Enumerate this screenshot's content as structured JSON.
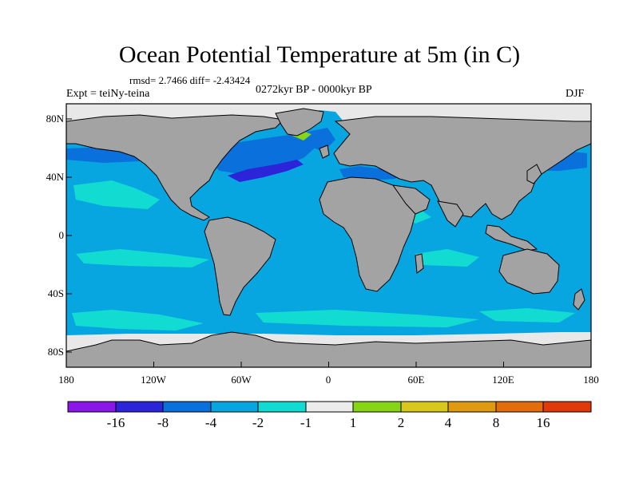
{
  "title": "Ocean Potential Temperature at 5m (in C)",
  "stats": "rmsd= 2.7466 diff= -2.43424",
  "experiment": "Expt = teiNy-teina",
  "period": "0272kyr BP - 0000kyr BP",
  "season": "DJF",
  "axes": {
    "x_ticks": [
      "180",
      "120W",
      "60W",
      "0",
      "60E",
      "120E",
      "180"
    ],
    "y_ticks": [
      "80N",
      "40N",
      "0",
      "40S",
      "80S"
    ]
  },
  "colorbar": {
    "labels": [
      "-16",
      "-8",
      "-4",
      "-2",
      "-1",
      "1",
      "2",
      "4",
      "8",
      "16"
    ],
    "colors": [
      "#8a17e8",
      "#2b24d9",
      "#0a70dc",
      "#08a6e1",
      "#12dcd2",
      "#ececec",
      "#86d616",
      "#d8c81c",
      "#e09a12",
      "#e36d0c",
      "#df3a08"
    ]
  },
  "palette": {
    "land": "#a3a3a3",
    "ice": "#e8e8e8",
    "ocean": "#08a6e1",
    "frame": "#000000"
  }
}
